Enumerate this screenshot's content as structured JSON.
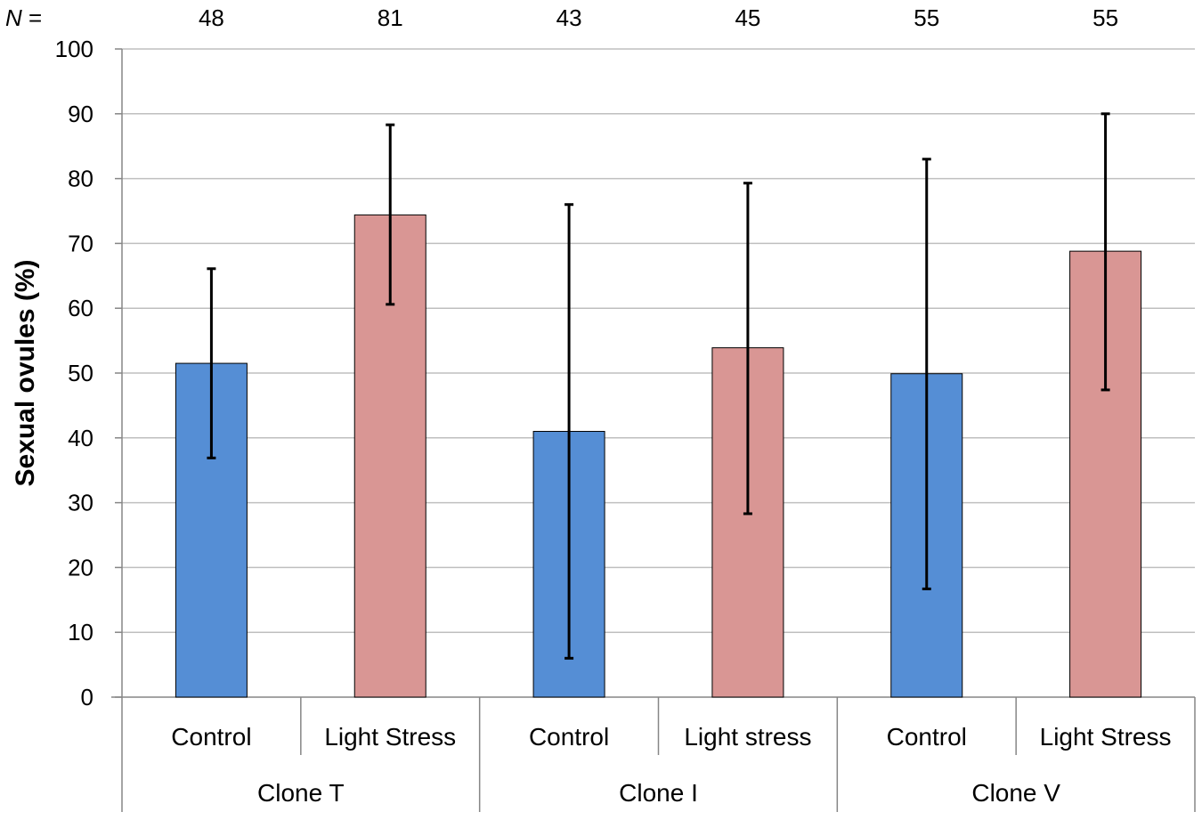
{
  "chart_data": {
    "type": "bar",
    "title": "",
    "xlabel": "",
    "ylabel": "Sexual ovules (%)",
    "ylim": [
      0,
      100
    ],
    "yticks": [
      0,
      10,
      20,
      30,
      40,
      50,
      60,
      70,
      80,
      90,
      100
    ],
    "ytick_labels": [
      "0",
      "10",
      "20",
      "30",
      "40",
      "50",
      "60",
      "70",
      "80",
      "90",
      "100"
    ],
    "grid": true,
    "n_prefix": {
      "italic": "N",
      "rest": " ="
    },
    "categories": [
      "Control",
      "Light Stress",
      "Control",
      "Light stress",
      "Control",
      "Light Stress"
    ],
    "groups": [
      {
        "label": "Clone T",
        "span": 2
      },
      {
        "label": "Clone I",
        "span": 2
      },
      {
        "label": "Clone V",
        "span": 2
      }
    ],
    "values": [
      51.5,
      74.4,
      41.0,
      53.9,
      49.9,
      68.8
    ],
    "error_low": [
      36.9,
      60.6,
      6.0,
      28.3,
      16.7,
      47.4
    ],
    "error_high": [
      66.1,
      88.3,
      76.0,
      79.3,
      83.0,
      90.0
    ],
    "n": [
      "48",
      "81",
      "43",
      "45",
      "55",
      "55"
    ],
    "colors": [
      "#558ED5",
      "#D99694",
      "#558ED5",
      "#D99694",
      "#558ED5",
      "#D99694"
    ],
    "bar_edge_color": "#000000",
    "grid_color": "#bfbfbf"
  }
}
